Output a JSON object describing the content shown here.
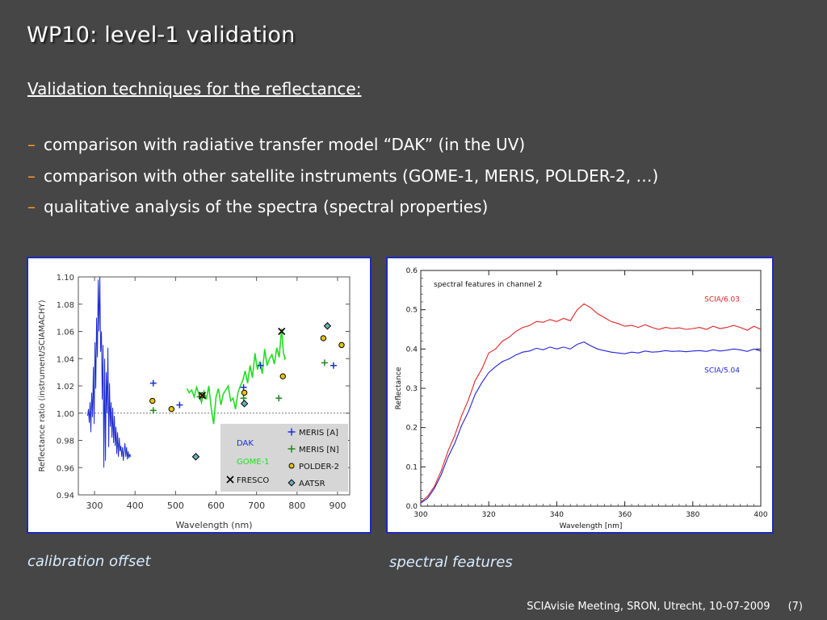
{
  "slide": {
    "title": "WP10: level-1 validation",
    "subtitle": "Validation techniques for the reflectance:",
    "bullets": [
      "comparison with radiative transfer model “DAK” (in the UV)",
      "comparison with other satellite instruments (GOME-1, MERIS, POLDER-2, …)",
      "qualitative analysis of the spectra (spectral properties)"
    ],
    "bullet_marker": "–",
    "captions": [
      "calibration offset",
      "spectral features"
    ],
    "footer": {
      "text": "SCIAvisie Meeting, SRON, Utrecht, 10-07-2009",
      "page": "(7)"
    }
  },
  "colors": {
    "background": "#464646",
    "bullet_accent": "#ff9a2e",
    "figure_border": "#1d2bb8",
    "caption": "#d9ecff"
  },
  "chart_data": [
    {
      "type": "scatter",
      "xlabel": "Wavelength (nm)",
      "ylabel": "Reflectance ratio (instrument/SCIAMACHY)",
      "xlim": [
        260,
        930
      ],
      "ylim": [
        0.94,
        1.1
      ],
      "xticks": [
        "300",
        "400",
        "500",
        "600",
        "700",
        "800",
        "900"
      ],
      "yticks": [
        "0.94",
        "0.96",
        "0.98",
        "1.00",
        "1.02",
        "1.04",
        "1.06",
        "1.08",
        "1.10"
      ],
      "reference_line": 1.0,
      "legend": {
        "placement": "bottom-right",
        "entries": [
          {
            "name": "MERIS [A]",
            "marker": "plus",
            "color": "#1f2fd0"
          },
          {
            "name": "MERIS [N]",
            "marker": "plus",
            "color": "#1c8a1c"
          },
          {
            "name": "POLDER-2",
            "marker": "circle",
            "color": "#e8c400"
          },
          {
            "name": "AATSR",
            "marker": "diamond",
            "color": "#6cb0b8"
          }
        ],
        "line_entries": [
          {
            "name": "DAK",
            "color": "#1f2fd0"
          },
          {
            "name": "GOME-1",
            "color": "#22dd22"
          },
          {
            "name": "FRESCO",
            "marker": "cross",
            "color": "#000000"
          }
        ]
      },
      "series": [
        {
          "name": "DAK",
          "kind": "line",
          "color": "#1f2fd0",
          "x": [
            283,
            285,
            287,
            289,
            291,
            293,
            295,
            297,
            299,
            301,
            303,
            305,
            307,
            309,
            311,
            313,
            315,
            317,
            319,
            321,
            323,
            325,
            327,
            329,
            331,
            333,
            335,
            337,
            339,
            341,
            343,
            345,
            347,
            349,
            351,
            353,
            355,
            357,
            359,
            361,
            363,
            365,
            367,
            369,
            371,
            373,
            375,
            377,
            379,
            381,
            383,
            385,
            387,
            389
          ],
          "y": [
            0.998,
            1.003,
            0.993,
            1.008,
            0.986,
            1.015,
            0.997,
            1.034,
            0.992,
            1.052,
            1.018,
            1.07,
            1.041,
            1.098,
            1.06,
            1.101,
            1.045,
            1.06,
            1.01,
            1.05,
            0.96,
            1.04,
            0.965,
            1.03,
            1.0,
            1.048,
            0.975,
            1.022,
            0.99,
            1.008,
            0.982,
            1.004,
            0.978,
            0.998,
            0.976,
            0.99,
            0.97,
            0.986,
            0.968,
            0.982,
            0.972,
            0.976,
            0.968,
            0.975,
            0.965,
            0.972,
            0.978,
            0.968,
            0.975,
            0.966,
            0.972,
            0.967,
            0.97,
            0.968
          ]
        },
        {
          "name": "GOME-1",
          "kind": "line",
          "color": "#22dd22",
          "x": [
            528,
            534,
            540,
            546,
            552,
            558,
            564,
            570,
            576,
            582,
            588,
            594,
            600,
            606,
            612,
            618,
            624,
            630,
            636,
            642,
            648,
            654,
            660,
            666,
            672,
            678,
            684,
            690,
            696,
            702,
            708,
            714,
            720,
            726,
            732,
            738,
            744,
            750,
            756,
            762,
            766,
            770,
            772
          ],
          "y": [
            1.018,
            1.015,
            1.017,
            1.012,
            1.019,
            1.014,
            1.008,
            1.016,
            1.01,
            1.02,
            1.004,
            0.992,
            1.012,
            1.018,
            1.006,
            1.014,
            1.017,
            1.02,
            1.009,
            1.011,
            1.003,
            1.015,
            1.02,
            1.024,
            1.031,
            1.022,
            1.035,
            1.026,
            1.044,
            1.032,
            1.038,
            1.029,
            1.047,
            1.035,
            1.04,
            1.043,
            1.036,
            1.048,
            1.041,
            1.062,
            1.045,
            1.04,
            1.041
          ]
        },
        {
          "name": "MERIS [A]",
          "kind": "points",
          "marker": "plus",
          "color": "#1f2fd0",
          "x": [
            445,
            510,
            668,
            710,
            890
          ],
          "y": [
            1.022,
            1.006,
            1.019,
            1.035,
            1.035
          ]
        },
        {
          "name": "MERIS [N]",
          "kind": "points",
          "marker": "plus",
          "color": "#1c8a1c",
          "x": [
            445,
            560,
            668,
            755,
            868
          ],
          "y": [
            1.002,
            1.012,
            1.011,
            1.011,
            1.037
          ]
        },
        {
          "name": "POLDER-2",
          "kind": "points",
          "marker": "circle",
          "color": "#e8c400",
          "x": [
            443,
            490,
            565,
            670,
            765,
            865,
            910
          ],
          "y": [
            1.009,
            1.003,
            1.013,
            1.015,
            1.027,
            1.055,
            1.05
          ]
        },
        {
          "name": "AATSR",
          "kind": "points",
          "marker": "diamond",
          "color": "#6cb0b8",
          "x": [
            550,
            670,
            875
          ],
          "y": [
            0.968,
            1.007,
            1.064
          ]
        },
        {
          "name": "FRESCO",
          "kind": "points",
          "marker": "cross",
          "color": "#000000",
          "x": [
            566,
            762
          ],
          "y": [
            1.013,
            1.06
          ]
        }
      ]
    },
    {
      "type": "line",
      "title": "spectral features in channel 2",
      "xlabel": "Wavelength [nm]",
      "ylabel": "Reflectance",
      "xlim": [
        300,
        400
      ],
      "ylim": [
        0.0,
        0.6
      ],
      "xticks": [
        "300",
        "320",
        "340",
        "360",
        "380",
        "400"
      ],
      "yticks": [
        "0.0",
        "0.1",
        "0.2",
        "0.3",
        "0.4",
        "0.5",
        "0.6"
      ],
      "series": [
        {
          "name": "SCIA/6.03",
          "color": "#e02424",
          "x": [
            300,
            302,
            304,
            306,
            308,
            310,
            312,
            314,
            316,
            318,
            320,
            322,
            324,
            326,
            328,
            330,
            332,
            334,
            336,
            338,
            340,
            342,
            344,
            346,
            348,
            350,
            352,
            354,
            356,
            358,
            360,
            362,
            364,
            366,
            368,
            370,
            372,
            374,
            376,
            378,
            380,
            382,
            384,
            386,
            388,
            390,
            392,
            394,
            396,
            398,
            400
          ],
          "y": [
            0.01,
            0.025,
            0.05,
            0.09,
            0.14,
            0.18,
            0.23,
            0.27,
            0.32,
            0.35,
            0.39,
            0.4,
            0.42,
            0.43,
            0.445,
            0.455,
            0.46,
            0.47,
            0.468,
            0.475,
            0.47,
            0.478,
            0.472,
            0.5,
            0.515,
            0.505,
            0.49,
            0.48,
            0.47,
            0.465,
            0.458,
            0.46,
            0.455,
            0.462,
            0.455,
            0.45,
            0.455,
            0.452,
            0.454,
            0.45,
            0.452,
            0.455,
            0.45,
            0.458,
            0.452,
            0.455,
            0.46,
            0.455,
            0.448,
            0.458,
            0.45
          ]
        },
        {
          "name": "SCIA/5.04",
          "color": "#2424d8",
          "x": [
            300,
            302,
            304,
            306,
            308,
            310,
            312,
            314,
            316,
            318,
            320,
            322,
            324,
            326,
            328,
            330,
            332,
            334,
            336,
            338,
            340,
            342,
            344,
            346,
            348,
            350,
            352,
            354,
            356,
            358,
            360,
            362,
            364,
            366,
            368,
            370,
            372,
            374,
            376,
            378,
            380,
            382,
            384,
            386,
            388,
            390,
            392,
            394,
            396,
            398,
            400
          ],
          "y": [
            0.008,
            0.02,
            0.045,
            0.08,
            0.125,
            0.16,
            0.205,
            0.24,
            0.285,
            0.315,
            0.34,
            0.355,
            0.368,
            0.375,
            0.385,
            0.392,
            0.395,
            0.402,
            0.398,
            0.405,
            0.4,
            0.405,
            0.4,
            0.412,
            0.418,
            0.408,
            0.4,
            0.396,
            0.392,
            0.39,
            0.388,
            0.392,
            0.39,
            0.395,
            0.392,
            0.393,
            0.396,
            0.394,
            0.395,
            0.393,
            0.395,
            0.396,
            0.394,
            0.398,
            0.395,
            0.397,
            0.4,
            0.398,
            0.394,
            0.4,
            0.395
          ]
        }
      ]
    }
  ]
}
